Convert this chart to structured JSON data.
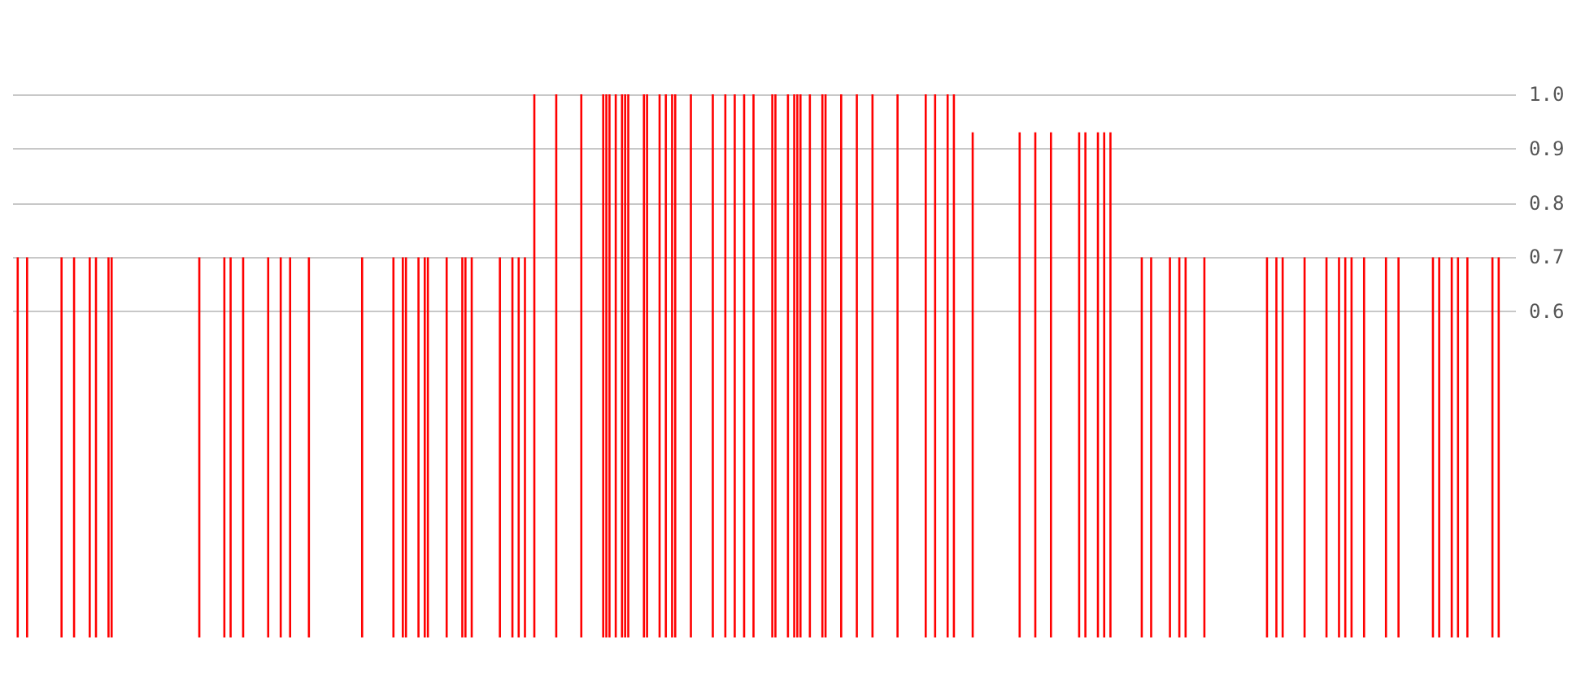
{
  "chart_data": {
    "type": "bar",
    "color": "#ff0000",
    "ylim": [
      0,
      1
    ],
    "yticks": [
      0.6,
      0.7,
      0.8,
      0.9,
      {
        "value": 1,
        "label": "1.0"
      }
    ],
    "grid": "y",
    "tick_labels": "y",
    "categories": [
      null,
      null,
      null,
      null,
      null,
      null,
      null,
      null,
      null,
      null,
      null,
      null,
      null,
      null,
      null,
      null,
      null,
      null,
      null,
      null,
      null,
      null,
      null,
      null,
      null,
      null,
      null,
      null,
      null,
      null,
      null,
      null,
      null,
      null,
      null,
      null,
      null,
      null,
      null,
      null,
      null,
      null,
      null,
      null,
      null,
      null,
      null,
      null,
      null,
      null,
      null,
      null,
      null,
      null,
      null,
      null,
      null,
      null,
      null,
      null,
      null,
      null,
      null,
      null,
      null,
      null,
      null,
      null,
      null,
      null,
      null,
      null,
      null,
      null,
      null,
      null,
      null,
      null,
      null,
      null,
      null,
      null,
      null,
      null,
      null,
      null,
      null,
      null,
      null,
      null,
      null,
      null,
      null,
      null,
      null,
      null,
      null,
      null,
      null,
      null,
      null,
      null,
      null,
      null,
      null,
      null,
      null,
      null,
      null,
      null,
      null,
      null,
      null,
      null,
      null,
      null,
      null,
      null,
      null,
      null,
      null,
      null,
      null,
      null,
      null,
      null,
      null,
      null,
      null,
      null,
      null,
      null,
      null,
      null,
      null,
      null,
      null,
      null,
      null,
      null,
      null,
      null,
      null,
      null,
      null,
      null,
      null,
      null,
      null,
      null,
      null,
      null,
      null,
      null,
      null,
      null,
      null,
      null,
      null,
      null,
      null,
      null,
      null,
      null,
      null,
      null,
      null,
      null,
      null,
      null,
      null,
      null,
      null,
      null,
      null,
      null,
      null,
      null,
      null,
      null,
      null,
      null,
      null,
      null,
      null,
      null,
      null,
      null,
      null,
      null,
      null,
      null,
      null,
      null,
      null,
      null,
      null,
      null,
      null,
      null,
      null,
      null,
      null,
      null,
      null,
      null,
      null,
      null,
      null,
      null,
      null,
      null,
      null,
      null,
      null,
      null,
      null,
      null,
      null,
      null,
      null,
      null,
      null,
      null,
      null,
      null,
      null,
      null,
      null,
      null,
      null,
      null,
      null,
      null,
      null,
      null,
      null,
      null,
      null,
      null,
      null,
      null,
      null,
      null,
      null,
      null,
      null,
      null,
      null,
      null,
      null,
      null,
      null,
      null,
      null,
      null,
      null,
      null,
      null,
      null,
      null,
      null,
      null,
      null,
      null,
      null,
      null,
      null,
      null,
      null,
      null,
      null,
      null,
      null,
      null,
      null,
      null,
      null,
      null,
      null,
      null,
      null,
      null,
      null,
      null,
      null,
      null,
      null,
      null,
      null,
      null,
      null,
      null,
      null,
      null,
      null,
      null,
      null,
      null,
      null,
      null,
      null,
      null,
      null,
      null,
      null,
      null,
      null,
      null,
      null,
      null,
      null,
      null,
      null,
      null,
      null,
      null,
      null,
      null,
      null,
      null,
      null,
      null,
      null,
      null,
      null,
      null,
      null,
      null,
      null,
      null,
      null,
      null,
      null,
      null,
      null,
      null,
      null,
      null,
      null,
      null,
      null,
      null,
      null,
      null,
      null,
      null,
      null,
      null,
      null,
      null,
      null,
      null,
      null,
      null,
      null,
      null,
      null,
      null,
      null,
      null,
      null,
      null,
      null,
      null,
      null,
      null,
      null,
      null,
      null,
      null,
      null,
      null,
      null,
      null,
      null,
      null,
      null,
      null,
      null,
      null,
      null,
      null,
      null,
      null,
      null,
      null,
      null,
      null,
      null,
      null,
      null,
      null,
      null,
      null,
      null,
      null,
      null,
      null,
      null,
      null,
      null,
      null,
      null,
      null,
      null,
      null,
      null,
      null,
      null,
      null,
      null,
      null,
      null,
      null,
      null,
      null,
      null,
      null,
      null,
      null,
      null,
      null,
      null,
      null,
      null,
      null,
      null,
      null,
      null,
      null,
      null,
      null,
      null,
      null,
      null,
      null,
      null,
      null,
      null,
      null,
      null,
      null,
      null,
      null,
      null,
      null,
      null,
      null,
      null,
      null,
      null,
      null,
      null,
      null,
      null,
      null,
      null,
      null,
      null,
      null,
      null,
      null,
      null,
      null,
      null,
      null,
      null,
      null,
      null,
      null,
      null,
      null,
      null,
      null,
      null,
      null,
      null,
      null,
      null
    ],
    "values": [
      null,
      0.7,
      null,
      null,
      0.7,
      null,
      null,
      null,
      null,
      null,
      null,
      null,
      null,
      null,
      null,
      0.7,
      null,
      null,
      null,
      0.7,
      null,
      null,
      null,
      null,
      0.7,
      null,
      0.7,
      null,
      null,
      null,
      0.7,
      0.7,
      null,
      null,
      null,
      null,
      null,
      null,
      null,
      null,
      null,
      null,
      null,
      null,
      null,
      null,
      null,
      null,
      null,
      null,
      null,
      null,
      null,
      null,
      null,
      null,
      null,
      null,
      null,
      0.7,
      null,
      null,
      null,
      null,
      null,
      null,
      null,
      0.7,
      null,
      0.7,
      null,
      null,
      null,
      0.7,
      null,
      null,
      null,
      null,
      null,
      null,
      null,
      0.7,
      null,
      null,
      null,
      0.7,
      null,
      null,
      0.7,
      null,
      null,
      null,
      null,
      null,
      0.7,
      null,
      null,
      null,
      null,
      null,
      null,
      null,
      null,
      null,
      null,
      null,
      null,
      null,
      null,
      null,
      null,
      0.7,
      null,
      null,
      null,
      null,
      null,
      null,
      null,
      null,
      null,
      0.7,
      null,
      null,
      0.7,
      0.7,
      null,
      null,
      null,
      0.7,
      null,
      0.7,
      0.7,
      null,
      null,
      null,
      null,
      null,
      0.7,
      null,
      null,
      null,
      null,
      0.7,
      0.7,
      null,
      0.7,
      null,
      null,
      null,
      null,
      null,
      null,
      null,
      null,
      0.7,
      null,
      null,
      null,
      0.7,
      null,
      0.7,
      null,
      0.7,
      null,
      null,
      1,
      null,
      null,
      null,
      null,
      null,
      null,
      1,
      null,
      null,
      null,
      null,
      null,
      null,
      null,
      1,
      null,
      null,
      null,
      null,
      null,
      null,
      1,
      1,
      1,
      null,
      1,
      null,
      1,
      1,
      1,
      null,
      null,
      null,
      null,
      1,
      1,
      null,
      null,
      null,
      1,
      null,
      1,
      null,
      1,
      1,
      null,
      null,
      null,
      null,
      1,
      null,
      null,
      null,
      null,
      null,
      null,
      1,
      null,
      null,
      null,
      1,
      null,
      null,
      1,
      null,
      null,
      1,
      null,
      null,
      1,
      null,
      null,
      null,
      null,
      null,
      1,
      1,
      null,
      null,
      null,
      1,
      null,
      1,
      1,
      1,
      null,
      null,
      1,
      null,
      null,
      null,
      1,
      1,
      null,
      null,
      null,
      null,
      1,
      null,
      null,
      null,
      null,
      1,
      null,
      null,
      null,
      null,
      1,
      null,
      null,
      null,
      null,
      null,
      null,
      null,
      1,
      null,
      null,
      null,
      null,
      null,
      null,
      null,
      null,
      1,
      null,
      null,
      1,
      null,
      null,
      null,
      1,
      null,
      1,
      null,
      null,
      null,
      null,
      null,
      0.93,
      null,
      null,
      null,
      null,
      null,
      null,
      null,
      null,
      null,
      null,
      null,
      null,
      null,
      null,
      0.93,
      null,
      null,
      null,
      null,
      0.93,
      null,
      null,
      null,
      null,
      0.93,
      null,
      null,
      null,
      null,
      null,
      null,
      null,
      null,
      0.93,
      null,
      0.93,
      null,
      null,
      null,
      0.93,
      null,
      0.93,
      null,
      0.93,
      null,
      null,
      null,
      null,
      null,
      null,
      null,
      null,
      null,
      0.7,
      null,
      null,
      0.7,
      null,
      null,
      null,
      null,
      null,
      0.7,
      null,
      null,
      0.7,
      null,
      0.7,
      null,
      null,
      null,
      null,
      null,
      0.7,
      null,
      null,
      null,
      null,
      null,
      null,
      null,
      null,
      null,
      null,
      null,
      null,
      null,
      null,
      null,
      null,
      null,
      null,
      null,
      0.7,
      null,
      null,
      0.7,
      null,
      0.7,
      null,
      null,
      null,
      null,
      null,
      null,
      0.7,
      null,
      null,
      null,
      null,
      null,
      null,
      0.7,
      null,
      null,
      null,
      0.7,
      null,
      0.7,
      null,
      0.7,
      null,
      null,
      null,
      0.7,
      null,
      null,
      null,
      null,
      null,
      null,
      0.7,
      null,
      null,
      null,
      0.7,
      null,
      null,
      null,
      null,
      null,
      null,
      null,
      null,
      null,
      null,
      0.7,
      null,
      0.7,
      null,
      null,
      null,
      0.7,
      null,
      0.7,
      null,
      null,
      0.7,
      null,
      null,
      null,
      null,
      null,
      null,
      null,
      0.7,
      null,
      0.7,
      null,
      null,
      null,
      null,
      null
    ]
  }
}
